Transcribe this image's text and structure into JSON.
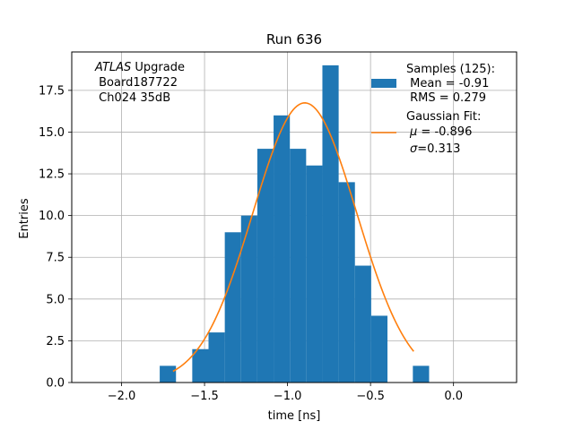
{
  "chart_data": {
    "type": "bar",
    "title": "Run 636",
    "xlabel": "time [ns]",
    "ylabel": "Entries",
    "xlim": [
      -2.3,
      0.38
    ],
    "ylim": [
      0,
      19.8
    ],
    "xticks": [
      -2.0,
      -1.5,
      -1.0,
      -0.5,
      0.0
    ],
    "xtick_labels": [
      "−2.0",
      "−1.5",
      "−1.0",
      "−0.5",
      "0.0"
    ],
    "yticks": [
      0,
      2.5,
      5,
      7.5,
      10,
      12.5,
      15,
      17.5
    ],
    "ytick_labels": [
      "0.0",
      "2.5",
      "5.0",
      "7.5",
      "10.0",
      "12.5",
      "15.0",
      "17.5"
    ],
    "grid": true,
    "bar_color": "#1f77b4",
    "fit_color": "#ff7f0e",
    "histogram": {
      "bin_edges": [
        -1.77,
        -1.672,
        -1.574,
        -1.476,
        -1.378,
        -1.28,
        -1.182,
        -1.084,
        -0.986,
        -0.888,
        -0.79,
        -0.692,
        -0.594,
        -0.496,
        -0.398,
        -0.3
      ],
      "counts": [
        1,
        0,
        2,
        3,
        9,
        10,
        14,
        16,
        14,
        13,
        19,
        12,
        7,
        4,
        0
      ],
      "extra_bins": [
        {
          "x0": -0.245,
          "x1": -0.147,
          "count": 1
        }
      ]
    },
    "fit": {
      "mu": -0.896,
      "sigma": 0.313,
      "amplitude": 16.75,
      "x_range": [
        -1.69,
        -0.24
      ]
    },
    "annotation": {
      "line1_italic": "ATLAS",
      "line1_rest": " Upgrade",
      "line2": " Board187722",
      "line3": " Ch024 35dB"
    },
    "legend": {
      "placement": "top-right",
      "samples_title": "Samples (125):",
      "samples_mean": " Mean = -0.91",
      "samples_rms": " RMS = 0.279",
      "fit_title": "Gaussian Fit:",
      "fit_mu_sym": "μ",
      "fit_mu_val": " = -0.896",
      "fit_sigma_sym": "σ",
      "fit_sigma_val": "=0.313"
    }
  }
}
